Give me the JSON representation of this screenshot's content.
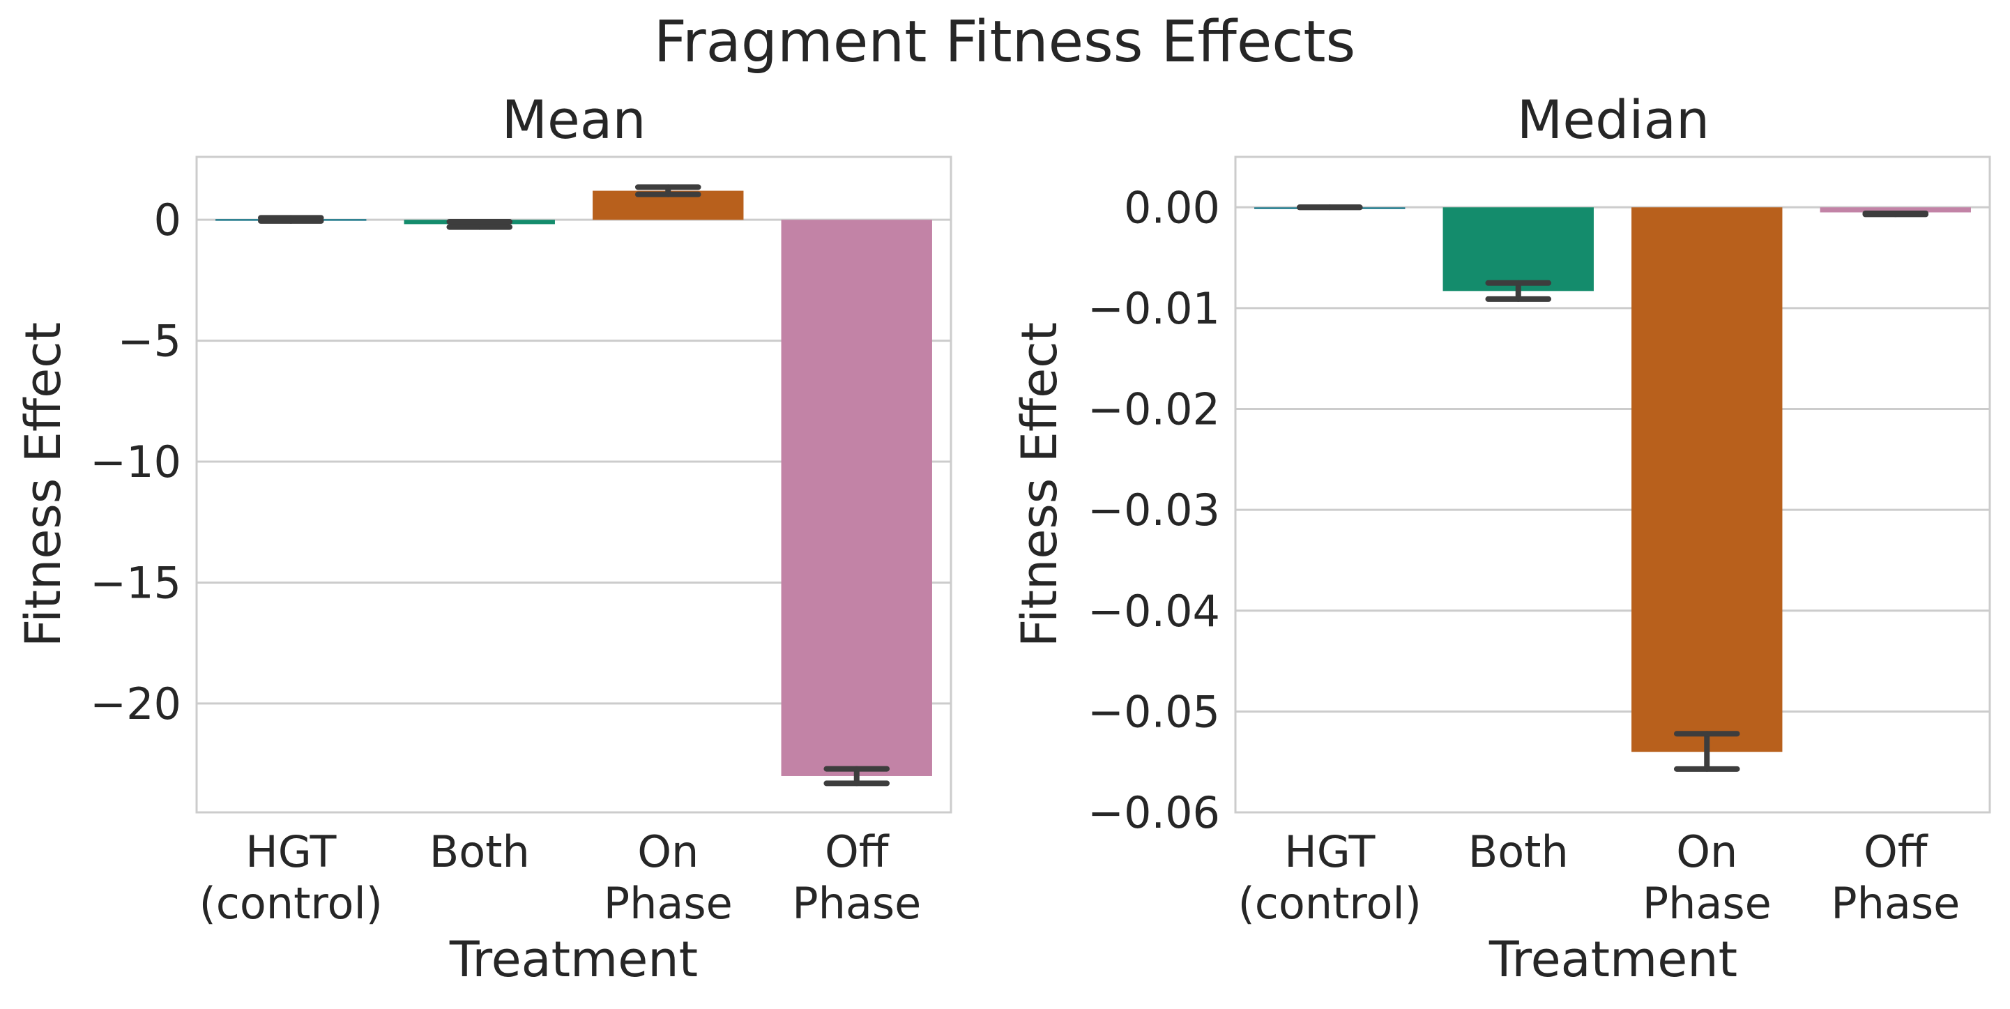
{
  "figure": {
    "title": "Fragment Fitness Effects"
  },
  "colors": {
    "HGT (control)": "#1f7a8c",
    "Both": "#148c6c",
    "On Phase": "#b8601c",
    "Off Phase": "#c283a6",
    "error_bar": "#3d3d3d",
    "grid": "#cccccc",
    "frame": "#cccccc"
  },
  "chart_data": [
    {
      "type": "bar",
      "title": "Mean",
      "xlabel": "Treatment",
      "ylabel": "Fitness Effect",
      "categories": [
        [
          "HGT",
          "(control)"
        ],
        [
          "Both"
        ],
        [
          "On",
          "Phase"
        ],
        [
          "Off",
          "Phase"
        ]
      ],
      "values": [
        0.03,
        -0.18,
        1.2,
        -23.0
      ],
      "error": [
        [
          -0.05,
          0.08
        ],
        [
          -0.3,
          -0.08
        ],
        [
          1.05,
          1.35
        ],
        [
          -23.3,
          -22.7
        ]
      ],
      "yticks": [
        0,
        -5,
        -10,
        -15,
        -20
      ],
      "yticklabels": [
        "0",
        "−5",
        "−10",
        "−15",
        "−20"
      ],
      "ylim": [
        -24.5,
        2.6
      ],
      "grid": true
    },
    {
      "type": "bar",
      "title": "Median",
      "xlabel": "Treatment",
      "ylabel": "Fitness Effect",
      "categories": [
        [
          "HGT",
          "(control)"
        ],
        [
          "Both"
        ],
        [
          "On",
          "Phase"
        ],
        [
          "Off",
          "Phase"
        ]
      ],
      "values": [
        0.0,
        -0.0083,
        -0.054,
        -0.0005
      ],
      "error": [
        [
          0.0,
          0.0
        ],
        [
          -0.0091,
          -0.0075
        ],
        [
          -0.0557,
          -0.0522
        ],
        [
          -0.0007,
          -0.0006
        ]
      ],
      "yticks": [
        0.0,
        -0.01,
        -0.02,
        -0.03,
        -0.04,
        -0.05,
        -0.06
      ],
      "yticklabels": [
        "0.00",
        "−0.01",
        "−0.02",
        "−0.03",
        "−0.04",
        "−0.05",
        "−0.06"
      ],
      "ylim": [
        -0.06,
        0.005
      ],
      "grid": true
    }
  ]
}
